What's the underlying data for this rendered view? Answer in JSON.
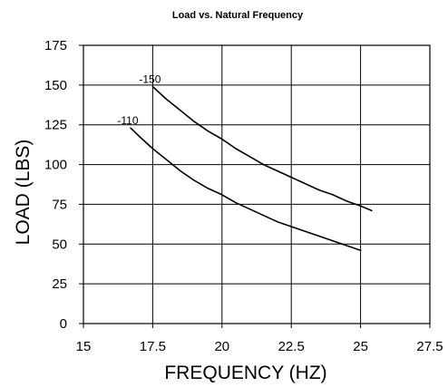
{
  "chart_data": {
    "type": "line",
    "title": "Load vs. Natural Frequency",
    "xlabel": "FREQUENCY (HZ)",
    "ylabel": "LOAD (LBS)",
    "xlim": [
      15,
      27.5
    ],
    "ylim": [
      0,
      175
    ],
    "x_ticks": [
      "15",
      "17.5",
      "20",
      "22.5",
      "25",
      "27.5"
    ],
    "y_ticks": [
      "0",
      "25",
      "50",
      "75",
      "100",
      "125",
      "150",
      "175"
    ],
    "grid": true,
    "legend": "none",
    "series": [
      {
        "name": "-150",
        "x": [
          17.5,
          18.0,
          18.5,
          19.0,
          19.5,
          20.0,
          20.5,
          21.0,
          21.5,
          22.0,
          22.5,
          23.0,
          23.5,
          24.0,
          24.5,
          25.0,
          25.4
        ],
        "y": [
          149,
          141,
          134,
          127,
          121,
          116,
          110,
          105,
          100,
          96,
          92,
          88,
          84,
          81,
          77,
          74,
          71
        ]
      },
      {
        "name": "-110",
        "x": [
          16.7,
          17.0,
          17.5,
          18.0,
          18.5,
          19.0,
          19.5,
          20.0,
          20.5,
          21.0,
          21.5,
          22.0,
          22.5,
          23.0,
          23.5,
          24.0,
          24.5,
          25.0
        ],
        "y": [
          123,
          118,
          110,
          103,
          96,
          90,
          85,
          81,
          76,
          72,
          68,
          64,
          61,
          58,
          55,
          52,
          49,
          46
        ]
      }
    ]
  }
}
